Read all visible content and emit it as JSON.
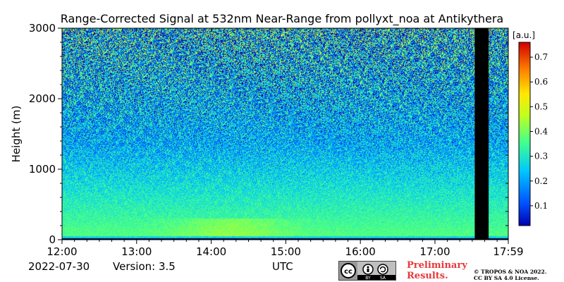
{
  "chart_data": {
    "type": "heatmap",
    "title": "Range-Corrected Signal at 532nm Near-Range from pollyxt_noa at Antikythera",
    "ylabel": "Height (m)",
    "xlabel": "UTC",
    "x_ticks": [
      "12:00",
      "13:00",
      "14:00",
      "15:00",
      "16:00",
      "17:00",
      "17:59"
    ],
    "y_ticks": [
      "0",
      "1000",
      "2000",
      "3000"
    ],
    "ylim": [
      0,
      3000
    ],
    "colorbar": {
      "label": "[a.u.]",
      "ticks": [
        "0.1",
        "0.2",
        "0.3",
        "0.4",
        "0.5",
        "0.6",
        "0.7"
      ],
      "range": [
        0.02,
        0.76
      ],
      "colormap": "jet"
    },
    "no_data_interval": [
      "17:32",
      "17:43"
    ],
    "low_level_band_m": [
      0,
      70
    ]
  },
  "footer": {
    "date": "2022-07-30",
    "version": "Version: 3.5",
    "prelim_line1": "Preliminary",
    "prelim_line2": "Results.",
    "copyright_line1": "© TROPOS & NOA 2022.",
    "copyright_line2": "CC BY SA 4.0 License.",
    "cc_cc": "cc",
    "cc_by": "BY",
    "cc_sa": "SA"
  }
}
